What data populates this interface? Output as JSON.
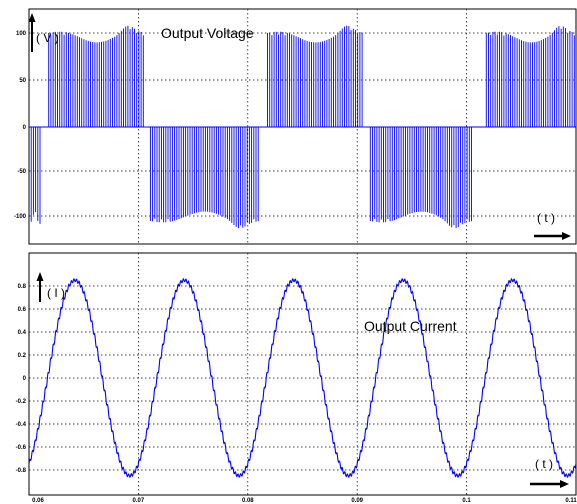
{
  "chart_data": [
    {
      "type": "line",
      "title": "Output Voltage",
      "ylabel": "( V )",
      "xlabel": "( t )",
      "xlim": [
        0.06,
        0.11
      ],
      "ylim": [
        -125,
        125
      ],
      "yticks": [
        "100",
        "50",
        "0",
        "-50",
        "-100"
      ],
      "grid": true,
      "series": [
        {
          "color": "#0000ff",
          "description_segments": [
            {
              "x": [
                0.06,
                0.0611
              ],
              "v": -100
            },
            {
              "x": [
                0.0611,
                0.0618
              ],
              "v": 0
            },
            {
              "x": [
                0.0618,
                0.0706
              ],
              "v": 100
            },
            {
              "x": [
                0.0706,
                0.0711
              ],
              "v": 0
            },
            {
              "x": [
                0.0711,
                0.081
              ],
              "v": -100
            },
            {
              "x": [
                0.081,
                0.0818
              ],
              "v": 0
            },
            {
              "x": [
                0.0818,
                0.0906
              ],
              "v": 100
            },
            {
              "x": [
                0.0906,
                0.0912
              ],
              "v": 0
            },
            {
              "x": [
                0.0912,
                0.1005
              ],
              "v": -100
            },
            {
              "x": [
                0.1005,
                0.1018
              ],
              "v": 0
            },
            {
              "x": [
                0.1018,
                0.11
              ],
              "v": 100
            }
          ]
        }
      ]
    },
    {
      "type": "line",
      "title": "Output Current",
      "ylabel": "( I )",
      "xlabel": "( t )",
      "xlim": [
        0.06,
        0.11
      ],
      "ylim": [
        -0.9,
        0.9
      ],
      "xticks": [
        "0.06",
        "0.07",
        "0.08",
        "0.09",
        "0.1",
        "0.11"
      ],
      "yticks": [
        "0.8",
        "0.6",
        "0.4",
        "0.2",
        "0",
        "-0.2",
        "-0.4",
        "-0.6",
        "-0.8"
      ],
      "grid": true,
      "series": [
        {
          "color": "#0000ff",
          "amplitude": 0.85,
          "frequency_hz": 100,
          "zero_crossing_rising": 0.0617
        }
      ]
    }
  ]
}
